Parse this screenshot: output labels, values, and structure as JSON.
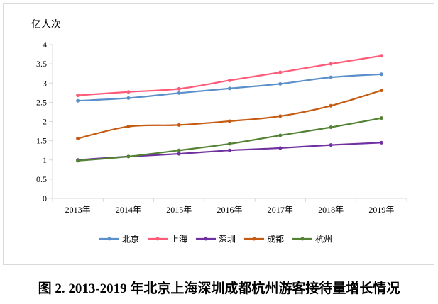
{
  "chart_data": {
    "type": "line",
    "title": "",
    "ylabel": "亿人次",
    "xlabel": "",
    "categories": [
      "2013年",
      "2014年",
      "2015年",
      "2016年",
      "2017年",
      "2018年",
      "2019年"
    ],
    "ylim": [
      0,
      4
    ],
    "yticks": [
      "0",
      "0.5",
      "1",
      "1.5",
      "2",
      "2.5",
      "3",
      "3.5",
      "4"
    ],
    "grid": false,
    "legend": "bottom",
    "series": [
      {
        "name": "北京",
        "color": "#5b8fc9",
        "values": [
          2.54,
          2.61,
          2.74,
          2.86,
          2.98,
          3.15,
          3.23
        ]
      },
      {
        "name": "上海",
        "color": "#ff5a78",
        "values": [
          2.68,
          2.77,
          2.85,
          3.07,
          3.28,
          3.5,
          3.71
        ]
      },
      {
        "name": "深圳",
        "color": "#7030a0",
        "values": [
          1.0,
          1.09,
          1.16,
          1.25,
          1.31,
          1.39,
          1.45
        ]
      },
      {
        "name": "成都",
        "color": "#c55a11",
        "values": [
          1.56,
          1.87,
          1.91,
          2.01,
          2.14,
          2.41,
          2.81
        ]
      },
      {
        "name": "杭州",
        "color": "#548235",
        "values": [
          0.98,
          1.09,
          1.25,
          1.42,
          1.64,
          1.85,
          2.09
        ]
      }
    ]
  },
  "caption": "图 2. 2013-2019 年北京上海深圳成都杭州游客接待量增长情况"
}
